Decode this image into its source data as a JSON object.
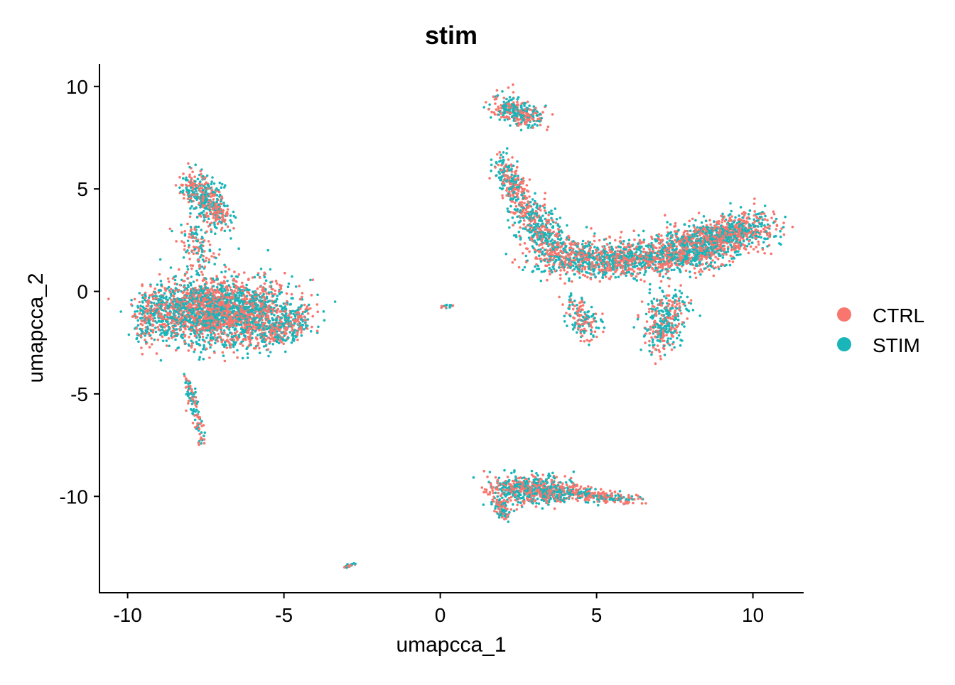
{
  "chart_data": {
    "type": "scatter",
    "title": "stim",
    "xlabel": "umapcca_1",
    "ylabel": "umapcca_2",
    "xlim": [
      -10.9,
      11.6
    ],
    "ylim": [
      -14.7,
      11.1
    ],
    "xticks": [
      -10,
      -5,
      0,
      5,
      10
    ],
    "yticks": [
      -10,
      -5,
      0,
      5,
      10
    ],
    "xtick_labels": [
      "-10",
      "-5",
      "0",
      "5",
      "10"
    ],
    "ytick_labels": [
      "-10",
      "-5",
      "0",
      "5",
      "10"
    ],
    "grid": false,
    "legend": {
      "placement": "right",
      "entries": [
        {
          "label": "CTRL",
          "color": "#F8766D"
        },
        {
          "label": "STIM",
          "color": "#1AB5B9"
        }
      ]
    },
    "note": "Point clouds are described as segments in data units (from/to centre line, gaussian spread sx/sy, point count n); points are drawn from these with a seeded generator, half CTRL and half STIM",
    "clusters": [
      {
        "name": "left-main",
        "from": [
          -8.6,
          -1.0
        ],
        "to": [
          -5.6,
          -1.0
        ],
        "sx": 1.0,
        "sy": 1.05,
        "n": 2600
      },
      {
        "name": "left-main-right-edge",
        "from": [
          -5.5,
          -2.2
        ],
        "to": [
          -4.3,
          -1.2
        ],
        "sx": 0.35,
        "sy": 0.5,
        "n": 250
      },
      {
        "name": "left-main-left-edge",
        "from": [
          -9.6,
          -1.8
        ],
        "to": [
          -9.0,
          -0.6
        ],
        "sx": 0.2,
        "sy": 0.6,
        "n": 150
      },
      {
        "name": "left-upper",
        "from": [
          -7.9,
          5.4
        ],
        "to": [
          -7.0,
          3.4
        ],
        "sx": 0.35,
        "sy": 0.5,
        "n": 450
      },
      {
        "name": "left-bridge",
        "from": [
          -8.0,
          3.0
        ],
        "to": [
          -7.6,
          1.2
        ],
        "sx": 0.3,
        "sy": 0.5,
        "n": 120
      },
      {
        "name": "left-tail",
        "from": [
          -8.1,
          -4.2
        ],
        "to": [
          -7.6,
          -7.4
        ],
        "sx": 0.1,
        "sy": 0.2,
        "n": 110
      },
      {
        "name": "right-top",
        "from": [
          1.9,
          9.2
        ],
        "to": [
          3.0,
          8.4
        ],
        "sx": 0.3,
        "sy": 0.4,
        "n": 300
      },
      {
        "name": "right-neck",
        "from": [
          1.9,
          6.3
        ],
        "to": [
          2.6,
          4.5
        ],
        "sx": 0.25,
        "sy": 0.5,
        "n": 220
      },
      {
        "name": "right-descent",
        "from": [
          2.6,
          4.3
        ],
        "to": [
          3.8,
          1.8
        ],
        "sx": 0.45,
        "sy": 0.5,
        "n": 450
      },
      {
        "name": "right-band",
        "from": [
          3.8,
          1.6
        ],
        "to": [
          7.5,
          1.6
        ],
        "sx": 1.0,
        "sy": 0.6,
        "n": 1200
      },
      {
        "name": "right-band-east",
        "from": [
          7.5,
          1.9
        ],
        "to": [
          10.0,
          3.1
        ],
        "sx": 0.7,
        "sy": 0.65,
        "n": 1300
      },
      {
        "name": "right-lower-branch",
        "from": [
          7.3,
          -0.3
        ],
        "to": [
          7.0,
          -2.6
        ],
        "sx": 0.45,
        "sy": 0.5,
        "n": 350
      },
      {
        "name": "right-lower-west",
        "from": [
          4.2,
          -0.6
        ],
        "to": [
          4.8,
          -1.9
        ],
        "sx": 0.35,
        "sy": 0.4,
        "n": 160
      },
      {
        "name": "bottom-main",
        "from": [
          2.0,
          -9.6
        ],
        "to": [
          4.0,
          -9.7
        ],
        "sx": 0.55,
        "sy": 0.45,
        "n": 650
      },
      {
        "name": "bottom-tail",
        "from": [
          4.0,
          -9.8
        ],
        "to": [
          6.0,
          -10.2
        ],
        "sx": 0.5,
        "sy": 0.2,
        "n": 250
      },
      {
        "name": "bottom-lower-left",
        "from": [
          1.9,
          -10.3
        ],
        "to": [
          2.1,
          -11.0
        ],
        "sx": 0.2,
        "sy": 0.25,
        "n": 80
      },
      {
        "name": "small-center",
        "from": [
          0.0,
          -0.75
        ],
        "to": [
          0.45,
          -0.65
        ],
        "sx": 0.05,
        "sy": 0.05,
        "n": 14
      },
      {
        "name": "small-bottom",
        "from": [
          -3.1,
          -13.5
        ],
        "to": [
          -2.7,
          -13.25
        ],
        "sx": 0.04,
        "sy": 0.05,
        "n": 20
      }
    ]
  }
}
